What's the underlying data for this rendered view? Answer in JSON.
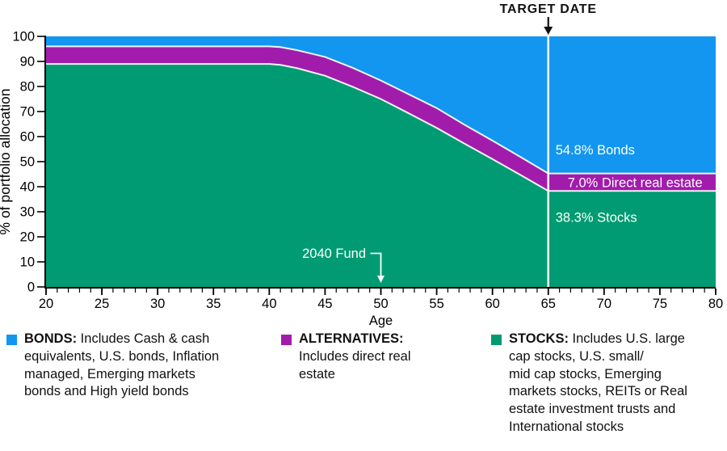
{
  "chart_data": {
    "type": "area",
    "stacked": true,
    "xlabel": "Age",
    "ylabel": "% of portfolio allocation",
    "xlim": [
      20,
      80
    ],
    "ylim": [
      0,
      100
    ],
    "x_major_ticks": [
      20,
      25,
      30,
      35,
      40,
      45,
      50,
      55,
      60,
      65,
      70,
      75,
      80
    ],
    "x_minor_tick_step": 1,
    "y_ticks": [
      0,
      10,
      20,
      30,
      40,
      50,
      60,
      70,
      80,
      90,
      100
    ],
    "x": [
      20,
      40,
      41,
      42.5,
      45,
      47.5,
      50,
      52.5,
      55,
      57.5,
      60,
      62.5,
      65,
      80
    ],
    "series": [
      {
        "name": "STOCKS",
        "color": "#009b72",
        "values": [
          89,
          89,
          88.6,
          87.3,
          84.3,
          79.8,
          75,
          69.3,
          63.5,
          57.2,
          51,
          44.7,
          38.3,
          38.3
        ]
      },
      {
        "name": "ALTERNATIVES",
        "color": "#a21cac",
        "values": [
          7,
          7,
          7.1,
          7.2,
          7.5,
          7.6,
          7.4,
          7.6,
          7.9,
          7.5,
          7.4,
          7.2,
          7,
          7
        ]
      },
      {
        "name": "BONDS",
        "color": "#1296f0",
        "values": [
          4,
          4,
          4.3,
          5.5,
          8.2,
          12.6,
          17.6,
          23.1,
          28.6,
          35.3,
          41.6,
          48.1,
          54.8,
          54.8
        ]
      }
    ],
    "target_date_age": 65,
    "fund_label_age": 50,
    "annotations": {
      "target_date_label": "TARGET DATE",
      "fund_label": "2040 Fund",
      "bonds_value_label": "54.8% Bonds",
      "alternatives_value_label": "7.0% Direct real estate",
      "stocks_value_label": "38.3% Stocks"
    },
    "colors": {
      "stocks": "#009b72",
      "alternatives": "#a21cac",
      "bonds": "#1296f0",
      "boundary_stroke": "#edf3f4",
      "target_line": "#ffffff",
      "axis": "#000000",
      "in_chart_text": "#ffffff",
      "annotation_text": "#111111"
    }
  },
  "legend": {
    "items": [
      {
        "id": "bonds",
        "color": "#1296f0",
        "label": "BONDS:",
        "description": " Includes Cash & cash\nequivalents, U.S. bonds, Inflation\nmanaged, Emerging markets\nbonds and High yield bonds"
      },
      {
        "id": "alternatives",
        "color": "#a21cac",
        "label": "ALTERNATIVES:",
        "description": "\nIncludes direct real\nestate"
      },
      {
        "id": "stocks",
        "color": "#009b72",
        "label": "STOCKS:",
        "description": " Includes U.S. large\ncap stocks, U.S. small/\nmid cap stocks, Emerging\nmarkets stocks, REITs or Real\nestate investment trusts and\nInternational stocks"
      }
    ]
  }
}
